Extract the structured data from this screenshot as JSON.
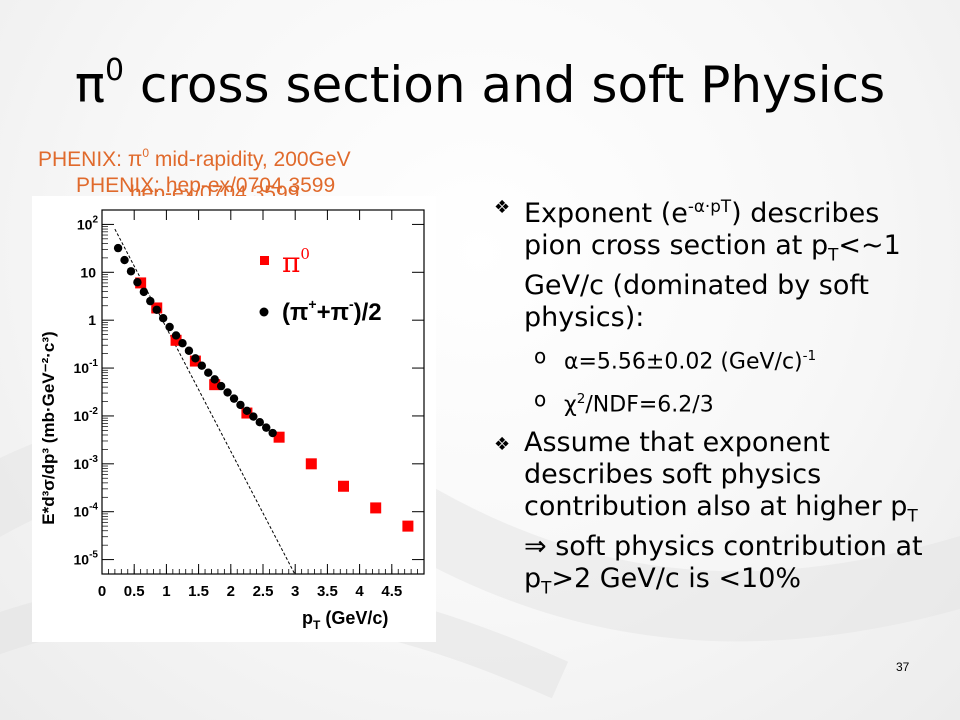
{
  "slide": {
    "title_pi": "π",
    "title_sup": "0",
    "title_rest": " cross section and soft  Physics",
    "page_number": "37"
  },
  "captions": {
    "c1_a": "PHENIX: ",
    "c1_pi": "π",
    "c1_sup": "0",
    "c1_b": " mid-rapidity, 200GeV",
    "c2": "PHENIX: hep-ex/0704.3599",
    "c3": "hep-ex/0704.3599"
  },
  "bullets": {
    "b1": {
      "t1": "Exponent (e",
      "sup": "-α·pT",
      "t2": ") describes pion cross section at p",
      "sub": "T",
      "t3": "<~1 GeV/c (dominated by soft physics):"
    },
    "sub1": {
      "t1": "α=5.56±0.02 (GeV/c)",
      "sup": "-1"
    },
    "sub2": {
      "t1": "χ",
      "sup": "2",
      "t2": "/NDF=6.2/3"
    },
    "b2": {
      "t1": "Assume that exponent describes soft physics contribution also at higher p",
      "sub1": "T",
      "t2": " ⇒ soft physics contribution at p",
      "sub2": "T",
      "t3": ">2 GeV/c is <10%"
    },
    "bullet_glyph": "❖",
    "sub_glyph": "ο"
  },
  "chart_data": {
    "type": "scatter",
    "yscale": "log",
    "xlim": [
      0,
      5
    ],
    "ylim": [
      5e-06,
      200
    ],
    "x_ticks": [
      "0",
      "0.5",
      "1",
      "1.5",
      "2",
      "2.5",
      "3",
      "3.5",
      "4",
      "4.5"
    ],
    "y_ticks": [
      {
        "base": "10",
        "exp": "2",
        "val": 100
      },
      {
        "base": "10",
        "exp": "",
        "val": 10
      },
      {
        "base": "1",
        "exp": "",
        "val": 1
      },
      {
        "base": "10",
        "exp": "-1",
        "val": 0.1
      },
      {
        "base": "10",
        "exp": "-2",
        "val": 0.01
      },
      {
        "base": "10",
        "exp": "-3",
        "val": 0.001
      },
      {
        "base": "10",
        "exp": "-4",
        "val": 0.0001
      },
      {
        "base": "10",
        "exp": "-5",
        "val": 1e-05
      }
    ],
    "xlabel_main": "p",
    "xlabel_sub": "T",
    "xlabel_rest": " (GeV/c)",
    "ylabel": "E*d³σ/dp³ (mb·GeV⁻²·c³)",
    "legend": {
      "pi0_label": "π",
      "pi0_sup": "0",
      "pipm_label": "(π",
      "pipm_sup1": "+",
      "pipm_mid": "+π",
      "pipm_sup2": "-",
      "pipm_end": ")/2"
    },
    "series": [
      {
        "name": "π0",
        "marker": "square",
        "color": "#ff0000",
        "x": [
          0.6,
          0.85,
          1.15,
          1.45,
          1.75,
          2.25,
          2.75,
          3.25,
          3.75,
          4.25,
          4.75
        ],
        "y": [
          6,
          1.8,
          0.38,
          0.14,
          0.045,
          0.0115,
          0.0036,
          0.001,
          0.00034,
          0.00012,
          5e-05
        ]
      },
      {
        "name": "(π++π-)/2",
        "marker": "circle",
        "color": "#000000",
        "x": [
          0.25,
          0.35,
          0.45,
          0.55,
          0.65,
          0.75,
          0.85,
          0.95,
          1.05,
          1.15,
          1.25,
          1.35,
          1.45,
          1.55,
          1.65,
          1.75,
          1.85,
          1.95,
          2.05,
          2.15,
          2.25,
          2.35,
          2.45,
          2.55,
          2.65
        ],
        "y": [
          32,
          18,
          10.5,
          6.2,
          3.9,
          2.5,
          1.65,
          1.1,
          0.72,
          0.48,
          0.33,
          0.23,
          0.16,
          0.112,
          0.08,
          0.058,
          0.042,
          0.031,
          0.023,
          0.017,
          0.0128,
          0.0097,
          0.0074,
          0.0057,
          0.0044
        ]
      }
    ],
    "fit_line": {
      "style": "dashed",
      "x": [
        0.2,
        3.0
      ],
      "y": [
        80,
        4.8e-06
      ]
    }
  }
}
